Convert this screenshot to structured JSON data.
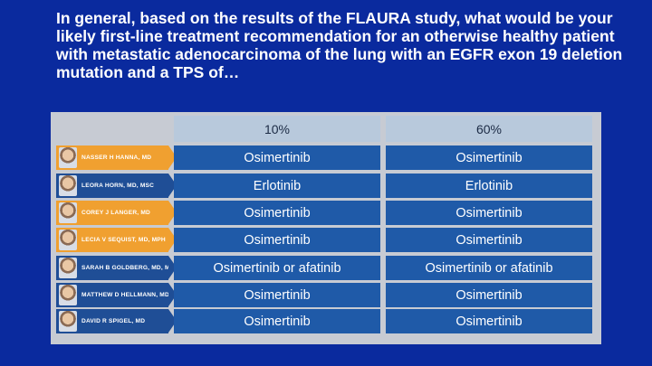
{
  "question": "In general, based on the results of the FLAURA study, what would be your likely first-line treatment recommendation for an otherwise healthy patient with metastatic adenocarcinoma of the lung with an EGFR exon 19 deletion mutation and a TPS of…",
  "columns": [
    "10%",
    "60%"
  ],
  "rows": [
    {
      "name": "NASSER H HANNA, MD",
      "highlight": true,
      "tps10": "Osimertinib",
      "tps60": "Osimertinib"
    },
    {
      "name": "LEORA HORN, MD, MSC",
      "highlight": false,
      "tps10": "Erlotinib",
      "tps60": "Erlotinib"
    },
    {
      "name": "COREY J LANGER, MD",
      "highlight": true,
      "tps10": "Osimertinib",
      "tps60": "Osimertinib"
    },
    {
      "name": "LECIA V SEQUIST, MD, MPH",
      "highlight": true,
      "tps10": "Osimertinib",
      "tps60": "Osimertinib"
    },
    {
      "name": "SARAH B GOLDBERG, MD, MPH",
      "highlight": false,
      "tps10": "Osimertinib or afatinib",
      "tps60": "Osimertinib or afatinib"
    },
    {
      "name": "MATTHEW D HELLMANN, MD",
      "highlight": false,
      "tps10": "Osimertinib",
      "tps60": "Osimertinib"
    },
    {
      "name": "DAVID R SPIGEL, MD",
      "highlight": false,
      "tps10": "Osimertinib",
      "tps60": "Osimertinib"
    }
  ]
}
